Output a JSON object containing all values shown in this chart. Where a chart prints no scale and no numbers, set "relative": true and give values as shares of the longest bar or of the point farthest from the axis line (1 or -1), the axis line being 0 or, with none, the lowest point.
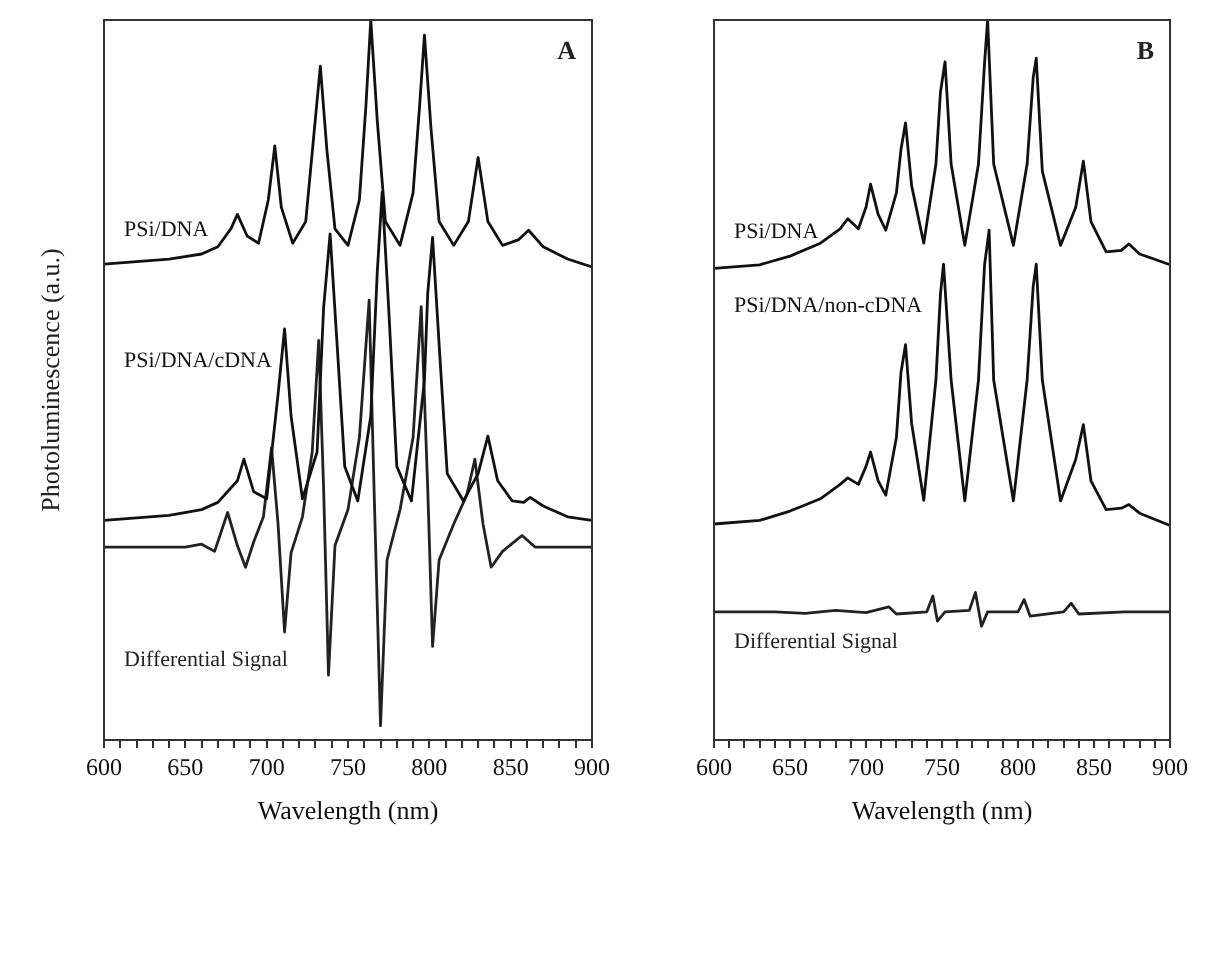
{
  "chart_data": [
    {
      "type": "line",
      "xlabel": "Wavelength (nm)",
      "ylabel": "Photoluminescence (a.u.)",
      "relative": true,
      "legend": false,
      "marker": "none",
      "line_style": "solid",
      "xlim": [
        600,
        900
      ],
      "xticks": [
        600,
        {
          "value": 610,
          "label": null
        },
        {
          "value": 620,
          "label": null
        },
        {
          "value": 630,
          "label": null
        },
        {
          "value": 640,
          "label": null
        },
        650,
        {
          "value": 660,
          "label": null
        },
        {
          "value": 670,
          "label": null
        },
        {
          "value": 680,
          "label": null
        },
        {
          "value": 690,
          "label": null
        },
        700,
        {
          "value": 710,
          "label": null
        },
        {
          "value": 720,
          "label": null
        },
        {
          "value": 730,
          "label": null
        },
        {
          "value": 740,
          "label": null
        },
        750,
        {
          "value": 760,
          "label": null
        },
        {
          "value": 770,
          "label": null
        },
        {
          "value": 780,
          "label": null
        },
        {
          "value": 790,
          "label": null
        },
        800,
        {
          "value": 810,
          "label": null
        },
        {
          "value": 820,
          "label": null
        },
        {
          "value": 830,
          "label": null
        },
        {
          "value": 840,
          "label": null
        },
        850,
        {
          "value": 860,
          "label": null
        },
        {
          "value": 870,
          "label": null
        },
        {
          "value": 880,
          "label": null
        },
        {
          "value": 890,
          "label": null
        },
        900
      ],
      "annotations": [
        "A"
      ],
      "series": [
        {
          "name": "PSi/DNA",
          "color": "#111111",
          "x": [
            600,
            640,
            660,
            670,
            678,
            682,
            688,
            695,
            701,
            705,
            709,
            716,
            724,
            729,
            733,
            737,
            742,
            750,
            757,
            761,
            764,
            768,
            773,
            782,
            790,
            794,
            797,
            801,
            806,
            815,
            824,
            830,
            836,
            845,
            855,
            861,
            870,
            885,
            900
          ],
          "values": [
            0.661,
            0.668,
            0.675,
            0.685,
            0.71,
            0.73,
            0.7,
            0.69,
            0.75,
            0.825,
            0.74,
            0.69,
            0.72,
            0.84,
            0.936,
            0.82,
            0.71,
            0.687,
            0.75,
            0.88,
            1.0,
            0.86,
            0.72,
            0.687,
            0.76,
            0.88,
            0.979,
            0.85,
            0.72,
            0.687,
            0.72,
            0.809,
            0.72,
            0.687,
            0.695,
            0.708,
            0.685,
            0.668,
            0.657
          ]
        },
        {
          "name": "PSi/DNA/cDNA",
          "color": "#111111",
          "x": [
            600,
            640,
            660,
            670,
            682,
            686,
            692,
            700,
            707,
            711,
            715,
            722,
            731,
            735,
            739,
            743,
            748,
            756,
            764,
            768,
            771,
            775,
            780,
            789,
            797,
            799,
            802,
            806,
            811,
            821,
            830,
            836,
            842,
            851,
            858,
            862,
            870,
            885,
            900
          ],
          "values": [
            0.305,
            0.312,
            0.32,
            0.33,
            0.36,
            0.39,
            0.345,
            0.335,
            0.48,
            0.571,
            0.45,
            0.335,
            0.4,
            0.6,
            0.703,
            0.56,
            0.38,
            0.332,
            0.45,
            0.65,
            0.761,
            0.6,
            0.38,
            0.332,
            0.5,
            0.62,
            0.698,
            0.55,
            0.37,
            0.332,
            0.37,
            0.422,
            0.36,
            0.332,
            0.33,
            0.337,
            0.325,
            0.31,
            0.305
          ]
        },
        {
          "name": "Differential Signal",
          "color": "#222222",
          "x": [
            600,
            650,
            660,
            668,
            676,
            682,
            687,
            692,
            698,
            703,
            707,
            711,
            715,
            722,
            728,
            732,
            735,
            738,
            742,
            750,
            757,
            763,
            766,
            770,
            774,
            782,
            790,
            795,
            799,
            802,
            806,
            815,
            823,
            828,
            833,
            838,
            845,
            857,
            865,
            900
          ],
          "values": [
            0.268,
            0.268,
            0.272,
            0.262,
            0.316,
            0.27,
            0.24,
            0.275,
            0.31,
            0.406,
            0.3,
            0.15,
            0.26,
            0.31,
            0.4,
            0.555,
            0.35,
            0.09,
            0.27,
            0.32,
            0.42,
            0.611,
            0.35,
            0.02,
            0.25,
            0.32,
            0.42,
            0.602,
            0.35,
            0.13,
            0.25,
            0.3,
            0.34,
            0.39,
            0.3,
            0.24,
            0.262,
            0.284,
            0.268,
            0.268
          ]
        }
      ]
    },
    {
      "type": "line",
      "xlabel": "Wavelength (nm)",
      "relative": true,
      "legend": false,
      "marker": "none",
      "line_style": "solid",
      "xlim": [
        600,
        900
      ],
      "xticks": [
        600,
        {
          "value": 610,
          "label": null
        },
        {
          "value": 620,
          "label": null
        },
        {
          "value": 630,
          "label": null
        },
        {
          "value": 640,
          "label": null
        },
        650,
        {
          "value": 660,
          "label": null
        },
        {
          "value": 670,
          "label": null
        },
        {
          "value": 680,
          "label": null
        },
        {
          "value": 690,
          "label": null
        },
        700,
        {
          "value": 710,
          "label": null
        },
        {
          "value": 720,
          "label": null
        },
        {
          "value": 730,
          "label": null
        },
        {
          "value": 740,
          "label": null
        },
        750,
        {
          "value": 760,
          "label": null
        },
        {
          "value": 770,
          "label": null
        },
        {
          "value": 780,
          "label": null
        },
        {
          "value": 790,
          "label": null
        },
        800,
        {
          "value": 810,
          "label": null
        },
        {
          "value": 820,
          "label": null
        },
        {
          "value": 830,
          "label": null
        },
        {
          "value": 840,
          "label": null
        },
        850,
        {
          "value": 860,
          "label": null
        },
        {
          "value": 870,
          "label": null
        },
        {
          "value": 880,
          "label": null
        },
        {
          "value": 890,
          "label": null
        },
        900
      ],
      "annotations": [
        "B"
      ],
      "series": [
        {
          "name": "PSi/DNA",
          "color": "#111111",
          "x": [
            600,
            630,
            650,
            670,
            683,
            688,
            695,
            700,
            703,
            708,
            713,
            720,
            723,
            726,
            730,
            738,
            746,
            749,
            752,
            756,
            765,
            774,
            778,
            780,
            784,
            797,
            806,
            810,
            812,
            816,
            828,
            838,
            843,
            848,
            858,
            868,
            873,
            880,
            900
          ],
          "values": [
            0.655,
            0.66,
            0.672,
            0.69,
            0.71,
            0.724,
            0.71,
            0.74,
            0.772,
            0.73,
            0.708,
            0.76,
            0.82,
            0.857,
            0.77,
            0.69,
            0.8,
            0.9,
            0.942,
            0.8,
            0.687,
            0.8,
            0.94,
            1.0,
            0.8,
            0.687,
            0.8,
            0.92,
            0.947,
            0.79,
            0.687,
            0.74,
            0.804,
            0.72,
            0.678,
            0.68,
            0.689,
            0.675,
            0.66
          ]
        },
        {
          "name": "PSi/DNA/non-cDNA",
          "color": "#111111",
          "x": [
            600,
            630,
            650,
            670,
            683,
            688,
            695,
            700,
            703,
            708,
            713,
            720,
            723,
            726,
            730,
            738,
            746,
            749,
            751,
            756,
            765,
            774,
            778,
            781,
            784,
            797,
            806,
            810,
            812,
            816,
            828,
            838,
            843,
            848,
            858,
            868,
            873,
            880,
            900
          ],
          "values": [
            0.3,
            0.305,
            0.318,
            0.335,
            0.355,
            0.364,
            0.355,
            0.38,
            0.4,
            0.36,
            0.34,
            0.42,
            0.51,
            0.549,
            0.44,
            0.333,
            0.5,
            0.62,
            0.661,
            0.5,
            0.332,
            0.5,
            0.66,
            0.708,
            0.5,
            0.332,
            0.5,
            0.63,
            0.661,
            0.5,
            0.332,
            0.39,
            0.438,
            0.36,
            0.32,
            0.322,
            0.327,
            0.315,
            0.298
          ]
        },
        {
          "name": "Differential Signal",
          "color": "#222222",
          "x": [
            600,
            640,
            660,
            680,
            700,
            715,
            720,
            740,
            744,
            747,
            752,
            768,
            772,
            776,
            780,
            800,
            804,
            808,
            830,
            835,
            840,
            870,
            900
          ],
          "values": [
            0.178,
            0.178,
            0.176,
            0.18,
            0.177,
            0.185,
            0.175,
            0.178,
            0.2,
            0.165,
            0.178,
            0.18,
            0.205,
            0.158,
            0.178,
            0.178,
            0.195,
            0.172,
            0.178,
            0.19,
            0.175,
            0.178,
            0.178
          ]
        }
      ]
    }
  ]
}
